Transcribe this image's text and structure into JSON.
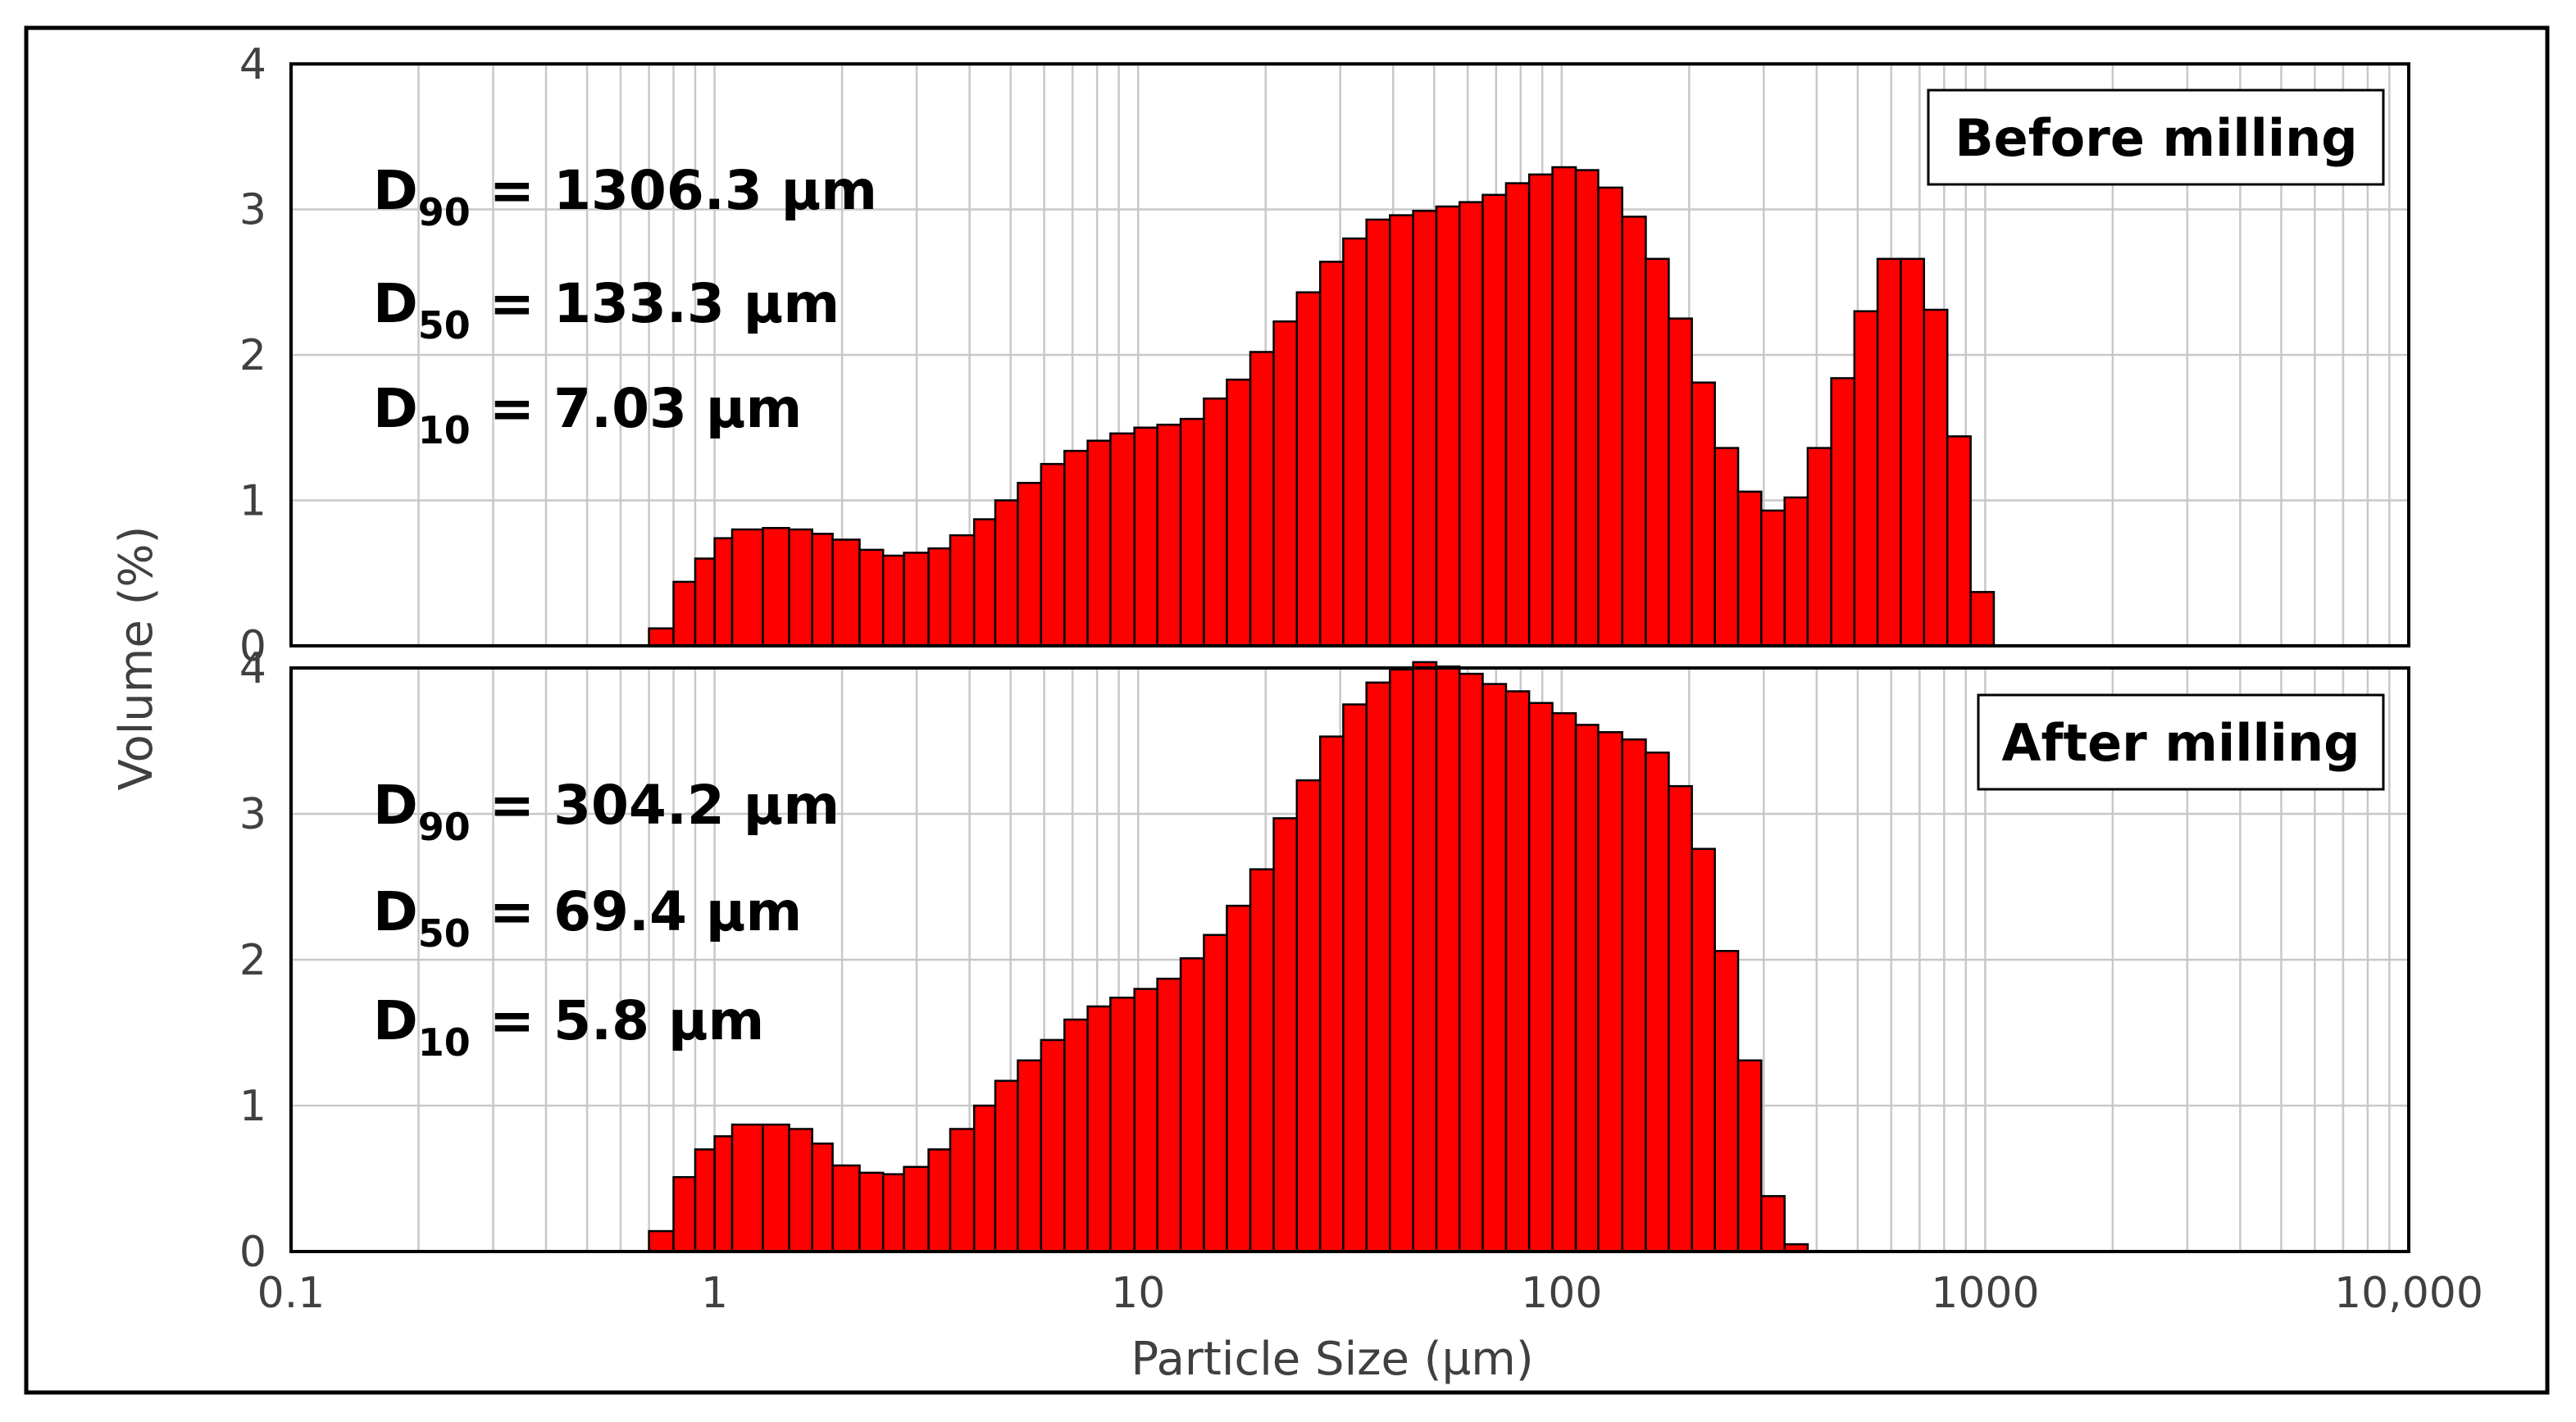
{
  "chart_data": {
    "type": "bar",
    "xlabel": "Particle Size (µm)",
    "ylabel": "Volume (%)",
    "xscale": "log",
    "xlim": [
      0.1,
      10000
    ],
    "ylim": [
      0,
      4
    ],
    "x_tick_labels": [
      "0.1",
      "1",
      "10",
      "100",
      "1000",
      "10,000"
    ],
    "y_tick_labels": [
      "0",
      "1",
      "2",
      "3",
      "4"
    ],
    "grid": true,
    "bin_edges": [
      0.7,
      0.8,
      0.9,
      1.0,
      1.1,
      1.3,
      1.5,
      1.7,
      1.9,
      2.2,
      2.5,
      2.8,
      3.2,
      3.6,
      4.1,
      4.6,
      5.2,
      5.9,
      6.7,
      7.6,
      8.6,
      9.8,
      11.1,
      12.6,
      14.3,
      16.2,
      18.4,
      20.9,
      23.7,
      26.9,
      30.5,
      34.6,
      39.3,
      44.6,
      50.6,
      57.4,
      65.1,
      73.9,
      83.8,
      95.1,
      108,
      122,
      139,
      158,
      179,
      203,
      230,
      261,
      296,
      336,
      381,
      433,
      491,
      557,
      632,
      717,
      814,
      924,
      1048,
      1189,
      1349,
      1531,
      1737,
      1971,
      2237
    ],
    "panels": [
      {
        "name": "Before milling",
        "stats": [
          {
            "label": "D",
            "subscript": "90",
            "text": " = 1306.3 µm"
          },
          {
            "label": "D",
            "subscript": "50",
            "text": " = 133.3 µm"
          },
          {
            "label": "D",
            "subscript": "10",
            "text": " = 7.03 µm"
          }
        ],
        "values": [
          0.12,
          0.44,
          0.6,
          0.74,
          0.8,
          0.81,
          0.8,
          0.77,
          0.73,
          0.66,
          0.62,
          0.64,
          0.67,
          0.76,
          0.87,
          1.0,
          1.12,
          1.25,
          1.34,
          1.41,
          1.46,
          1.5,
          1.52,
          1.56,
          1.7,
          1.83,
          2.02,
          2.23,
          2.43,
          2.64,
          2.8,
          2.93,
          2.96,
          2.99,
          3.02,
          3.05,
          3.1,
          3.18,
          3.24,
          3.29,
          3.27,
          3.15,
          2.95,
          2.66,
          2.25,
          1.81,
          1.36,
          1.06,
          0.93,
          1.02,
          1.36,
          1.84,
          2.3,
          2.66,
          2.66,
          2.31,
          1.44,
          0.37
        ]
      },
      {
        "name": "After milling",
        "stats": [
          {
            "label": "D",
            "subscript": "90",
            "text": " = 304.2 µm"
          },
          {
            "label": "D",
            "subscript": "50",
            "text": " = 69.4 µm"
          },
          {
            "label": "D",
            "subscript": "10",
            "text": " = 5.8 µm"
          }
        ],
        "values": [
          0.14,
          0.51,
          0.7,
          0.79,
          0.87,
          0.87,
          0.84,
          0.74,
          0.59,
          0.54,
          0.53,
          0.58,
          0.7,
          0.84,
          1.0,
          1.17,
          1.31,
          1.45,
          1.59,
          1.68,
          1.74,
          1.8,
          1.87,
          2.01,
          2.17,
          2.37,
          2.62,
          2.97,
          3.23,
          3.53,
          3.75,
          3.9,
          3.99,
          4.04,
          4.01,
          3.96,
          3.89,
          3.84,
          3.76,
          3.69,
          3.61,
          3.56,
          3.51,
          3.42,
          3.19,
          2.76,
          2.06,
          1.31,
          0.38,
          0.05
        ]
      }
    ]
  }
}
